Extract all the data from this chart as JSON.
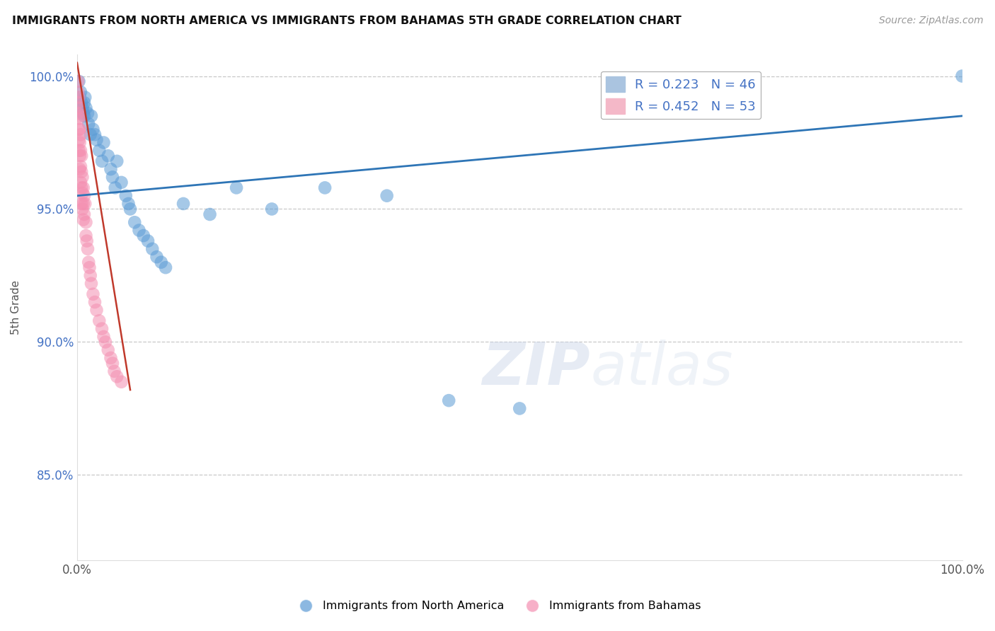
{
  "title": "IMMIGRANTS FROM NORTH AMERICA VS IMMIGRANTS FROM BAHAMAS 5TH GRADE CORRELATION CHART",
  "source": "Source: ZipAtlas.com",
  "ylabel": "5th Grade",
  "xlim": [
    0.0,
    1.0
  ],
  "ylim": [
    0.818,
    1.008
  ],
  "legend1_label": "R = 0.223   N = 46",
  "legend2_label": "R = 0.452   N = 53",
  "legend1_color": "#aac4e0",
  "legend2_color": "#f4b8c8",
  "blue_color": "#5b9bd5",
  "pink_color": "#f48fb1",
  "blue_line_color": "#2e75b6",
  "pink_line_color": "#c0392b",
  "blue_scatter_x": [
    0.002,
    0.003,
    0.004,
    0.005,
    0.006,
    0.007,
    0.008,
    0.008,
    0.009,
    0.01,
    0.012,
    0.013,
    0.015,
    0.016,
    0.018,
    0.02,
    0.022,
    0.025,
    0.028,
    0.03,
    0.035,
    0.038,
    0.04,
    0.043,
    0.045,
    0.05,
    0.055,
    0.058,
    0.06,
    0.065,
    0.07,
    0.075,
    0.08,
    0.085,
    0.09,
    0.095,
    0.1,
    0.12,
    0.15,
    0.18,
    0.22,
    0.28,
    0.35,
    0.42,
    0.5,
    1.0
  ],
  "blue_scatter_y": [
    0.998,
    0.992,
    0.994,
    0.99,
    0.988,
    0.986,
    0.99,
    0.985,
    0.992,
    0.988,
    0.986,
    0.982,
    0.978,
    0.985,
    0.98,
    0.978,
    0.976,
    0.972,
    0.968,
    0.975,
    0.97,
    0.965,
    0.962,
    0.958,
    0.968,
    0.96,
    0.955,
    0.952,
    0.95,
    0.945,
    0.942,
    0.94,
    0.938,
    0.935,
    0.932,
    0.93,
    0.928,
    0.952,
    0.948,
    0.958,
    0.95,
    0.958,
    0.955,
    0.878,
    0.875,
    1.0
  ],
  "pink_scatter_x": [
    0.001,
    0.001,
    0.001,
    0.001,
    0.002,
    0.002,
    0.002,
    0.002,
    0.002,
    0.002,
    0.003,
    0.003,
    0.003,
    0.003,
    0.003,
    0.004,
    0.004,
    0.004,
    0.004,
    0.005,
    0.005,
    0.005,
    0.005,
    0.006,
    0.006,
    0.006,
    0.007,
    0.007,
    0.007,
    0.008,
    0.008,
    0.009,
    0.01,
    0.01,
    0.011,
    0.012,
    0.013,
    0.014,
    0.015,
    0.016,
    0.018,
    0.02,
    0.022,
    0.025,
    0.028,
    0.03,
    0.032,
    0.035,
    0.038,
    0.04,
    0.042,
    0.045,
    0.05
  ],
  "pink_scatter_y": [
    0.998,
    0.994,
    0.99,
    0.986,
    0.992,
    0.988,
    0.984,
    0.98,
    0.976,
    0.972,
    0.985,
    0.98,
    0.975,
    0.97,
    0.965,
    0.978,
    0.972,
    0.966,
    0.96,
    0.97,
    0.964,
    0.958,
    0.952,
    0.962,
    0.956,
    0.95,
    0.958,
    0.952,
    0.946,
    0.955,
    0.948,
    0.952,
    0.945,
    0.94,
    0.938,
    0.935,
    0.93,
    0.928,
    0.925,
    0.922,
    0.918,
    0.915,
    0.912,
    0.908,
    0.905,
    0.902,
    0.9,
    0.897,
    0.894,
    0.892,
    0.889,
    0.887,
    0.885
  ],
  "blue_trend_x": [
    0.0,
    1.0
  ],
  "blue_trend_y": [
    0.955,
    0.985
  ],
  "pink_trend_x": [
    0.0,
    0.06
  ],
  "pink_trend_y": [
    1.005,
    0.882
  ]
}
